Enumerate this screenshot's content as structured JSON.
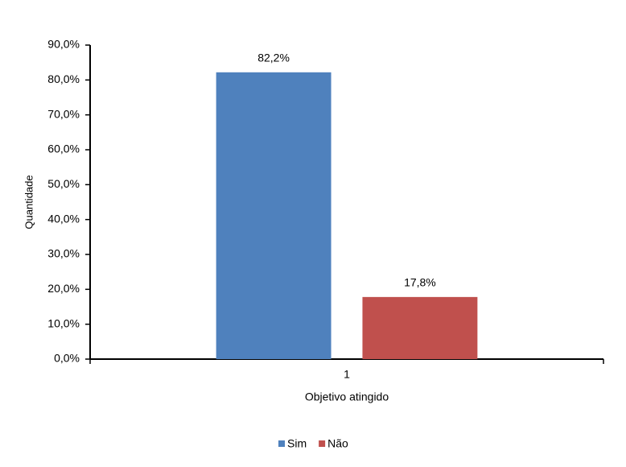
{
  "chart_data": {
    "type": "bar",
    "x_label": "Objetivo  atingido",
    "y_label": "Quantidade",
    "categories": [
      "1"
    ],
    "series": [
      {
        "name": "Sim",
        "color": "#4f81bd",
        "values": [
          82.2
        ],
        "value_labels": [
          "82,2%"
        ]
      },
      {
        "name": "Não",
        "color": "#c0504d",
        "values": [
          17.8
        ],
        "value_labels": [
          "17,8%"
        ]
      }
    ],
    "ylim": [
      0,
      90
    ],
    "yticks": [
      {
        "value": 0,
        "label": "0,0%"
      },
      {
        "value": 10,
        "label": "10,0%"
      },
      {
        "value": 20,
        "label": "20,0%"
      },
      {
        "value": 30,
        "label": "30,0%"
      },
      {
        "value": 40,
        "label": "40,0%"
      },
      {
        "value": 50,
        "label": "50,0%"
      },
      {
        "value": 60,
        "label": "60,0%"
      },
      {
        "value": 70,
        "label": "70,0%"
      },
      {
        "value": 80,
        "label": "80,0%"
      },
      {
        "value": 90,
        "label": "90,0%"
      }
    ],
    "grid": false,
    "legend": "bottom"
  }
}
